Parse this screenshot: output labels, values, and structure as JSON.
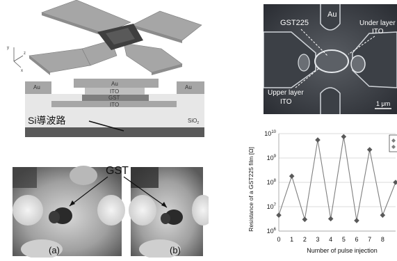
{
  "schematic": {
    "axes": {
      "y": "y",
      "z": "z",
      "x": "x"
    },
    "cross_section": {
      "au_left": "Au",
      "au_center": "Au",
      "au_right": "Au",
      "ito_top": "ITO",
      "gst": "GST",
      "ito_bottom": "ITO",
      "waveguide": "Si導波路",
      "oxide": "SiO",
      "oxide_sub": "2"
    }
  },
  "sem": {
    "au": "Au",
    "gst225": "GST225",
    "under_layer_1": "Under layer",
    "under_layer_2": "ITO",
    "upper_layer_1": "Upper layer",
    "upper_layer_2": "ITO",
    "scale_bar": "1 μm"
  },
  "micrograph": {
    "gst": "GST",
    "label_a": "(a)",
    "label_b": "(b)"
  },
  "chart_data": {
    "type": "line",
    "xlabel": "Number of pulse injection",
    "ylabel": "Resistance of a GST225 film [Ω]",
    "x": [
      0,
      1,
      2,
      3,
      4,
      5,
      6,
      7,
      8,
      9
    ],
    "xlim": [
      0,
      9
    ],
    "xticks": [
      "0",
      "1",
      "2",
      "3",
      "4",
      "5",
      "6",
      "7",
      "8"
    ],
    "yscale": "log",
    "ylim_exp": [
      6,
      10
    ],
    "yticks": [
      {
        "base": "10",
        "exp": "6"
      },
      {
        "base": "10",
        "exp": "7"
      },
      {
        "base": "10",
        "exp": "8"
      },
      {
        "base": "10",
        "exp": "9"
      },
      {
        "base": "10",
        "exp": "10"
      }
    ],
    "series": [
      {
        "values": [
          4500000.0,
          180000000.0,
          3000000.0,
          5500000000.0,
          3200000.0,
          7500000000.0,
          2700000.0,
          2200000000.0,
          4500000.0,
          100000000.0
        ]
      }
    ],
    "grid": true,
    "legend": "top-right",
    "marker": "diamond",
    "color": "#7f7f7f"
  }
}
